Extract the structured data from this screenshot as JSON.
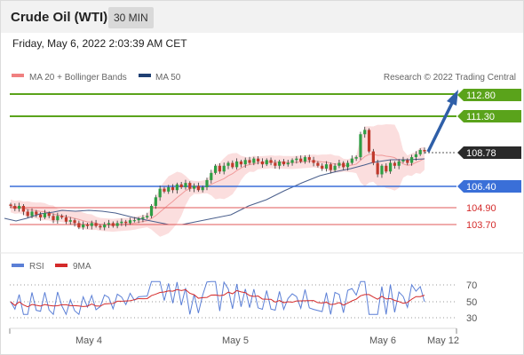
{
  "header": {
    "title": "Crude Oil (WTI)",
    "timeframe": "30 MIN"
  },
  "timestamp": "Friday, May 6, 2022 2:03:39 AM CET",
  "legend": {
    "bollinger": "MA 20 + Bollinger Bands",
    "ma50": "MA 50",
    "rsi": "RSI",
    "rsi_ma": "9MA"
  },
  "copyright": "Research © 2022 Trading Central",
  "colors": {
    "resistance": "#5aa31b",
    "support": "#3a6fd8",
    "target_support": "#e05a5a",
    "price": "#2a2a2a",
    "bullish": "#2e9e44",
    "bearish": "#c0392b",
    "arrow": "#2f5fa8",
    "bollinger": "#f7c5c5",
    "ma50": "#1f3f73",
    "rsi": "#5b7fd6",
    "rsi_ma": "#d42a2a"
  },
  "levels": [
    {
      "label": "112.80",
      "kind": "resistance"
    },
    {
      "label": "111.30",
      "kind": "resistance"
    },
    {
      "label": "108.78",
      "kind": "last"
    },
    {
      "label": "106.40",
      "kind": "support"
    },
    {
      "label": "104.90",
      "kind": "target"
    },
    {
      "label": "103.70",
      "kind": "target"
    }
  ],
  "chart_data": {
    "type": "candlestick",
    "instrument": "Crude Oil (WTI)",
    "interval": "30 MIN",
    "last_price": 108.78,
    "levels": {
      "resistance": [
        112.8,
        111.3
      ],
      "support": [
        106.4
      ],
      "targets_below": [
        104.9,
        103.7
      ]
    },
    "x_ticks": [
      "May 4",
      "May 5",
      "May 6",
      "May 12"
    ],
    "close": [
      105.0,
      104.8,
      105.0,
      104.6,
      104.3,
      104.6,
      104.4,
      104.2,
      104.5,
      104.3,
      104.0,
      104.3,
      104.2,
      103.9,
      104.0,
      103.8,
      103.5,
      103.7,
      103.6,
      103.8,
      103.6,
      103.5,
      103.7,
      103.8,
      103.6,
      103.8,
      103.9,
      103.8,
      104.0,
      104.0,
      104.1,
      104.2,
      104.3,
      105.0,
      105.6,
      106.2,
      106.0,
      106.3,
      106.1,
      106.5,
      106.3,
      106.6,
      106.2,
      106.4,
      106.1,
      106.3,
      106.8,
      107.3,
      107.8,
      107.4,
      107.8,
      108.0,
      107.7,
      108.1,
      107.9,
      108.2,
      108.0,
      108.3,
      108.1,
      107.9,
      108.2,
      108.0,
      107.8,
      108.1,
      107.9,
      108.0,
      108.2,
      108.3,
      108.1,
      108.4,
      108.2,
      108.0,
      107.8,
      107.6,
      107.9,
      107.5,
      107.8,
      108.0,
      107.7,
      108.0,
      108.3,
      108.4,
      110.0,
      110.3,
      108.8,
      108.0,
      107.2,
      107.8,
      107.4,
      108.0,
      107.8,
      108.1,
      108.2,
      108.0,
      108.4,
      108.6,
      108.9,
      108.8
    ],
    "ma50_y": [
      [
        5,
        246
      ],
      [
        18,
        249
      ],
      [
        30,
        246
      ],
      [
        45,
        241
      ],
      [
        60,
        239
      ],
      [
        70,
        237
      ],
      [
        85,
        238
      ],
      [
        100,
        237
      ],
      [
        115,
        238
      ],
      [
        130,
        240
      ],
      [
        150,
        245
      ],
      [
        170,
        249
      ],
      [
        190,
        253
      ],
      [
        205,
        253
      ],
      [
        220,
        250
      ],
      [
        240,
        246
      ],
      [
        260,
        242
      ],
      [
        280,
        232
      ],
      [
        300,
        225
      ],
      [
        320,
        215
      ],
      [
        340,
        206
      ],
      [
        360,
        198
      ],
      [
        380,
        193
      ],
      [
        395,
        190
      ],
      [
        410,
        186
      ],
      [
        420,
        183
      ],
      [
        440,
        180
      ],
      [
        460,
        180
      ],
      [
        478,
        179
      ]
    ],
    "rsi": {
      "levels": [
        70,
        50,
        30
      ],
      "ylim": [
        20,
        80
      ]
    },
    "legend": [
      "MA 20 + Bollinger Bands",
      "MA 50",
      "RSI",
      "9MA"
    ]
  }
}
